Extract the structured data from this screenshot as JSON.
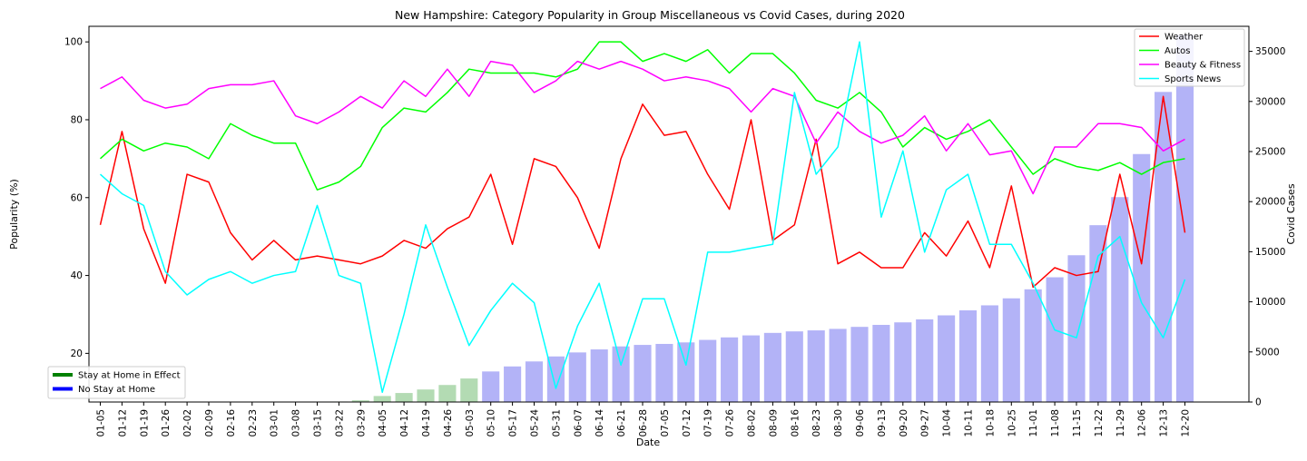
{
  "chart_data": {
    "type": "line",
    "title": "New Hampshire: Category Popularity in Group Miscellaneous vs Covid Cases, during 2020",
    "xlabel": "Date",
    "ylabel": "Popularity (%)",
    "y2label": "Covid Cases",
    "ylim": [
      7.5,
      104
    ],
    "y_ticks": [
      20,
      40,
      60,
      80,
      100
    ],
    "y2lim": [
      0,
      37500
    ],
    "y2_ticks": [
      0,
      5000,
      10000,
      15000,
      20000,
      25000,
      30000,
      35000
    ],
    "grid": false,
    "categories": [
      "01-05",
      "01-12",
      "01-19",
      "01-26",
      "02-02",
      "02-09",
      "02-16",
      "02-23",
      "03-01",
      "03-08",
      "03-15",
      "03-22",
      "03-29",
      "04-05",
      "04-12",
      "04-19",
      "04-26",
      "05-03",
      "05-10",
      "05-17",
      "05-24",
      "05-31",
      "06-07",
      "06-14",
      "06-21",
      "06-28",
      "07-05",
      "07-12",
      "07-19",
      "07-26",
      "08-02",
      "08-09",
      "08-16",
      "08-23",
      "08-30",
      "09-06",
      "09-13",
      "09-20",
      "09-27",
      "10-04",
      "10-11",
      "10-18",
      "10-25",
      "11-01",
      "11-08",
      "11-15",
      "11-22",
      "11-29",
      "12-06",
      "12-13",
      "12-20"
    ],
    "series": [
      {
        "name": "Weather",
        "color": "#ff0000",
        "values": [
          53,
          77,
          52,
          38,
          66,
          64,
          51,
          44,
          49,
          44,
          45,
          44,
          43,
          45,
          49,
          47,
          52,
          55,
          66,
          48,
          70,
          68,
          60,
          47,
          70,
          84,
          76,
          77,
          66,
          57,
          80,
          49,
          53,
          75,
          43,
          46,
          42,
          42,
          51,
          45,
          54,
          42,
          63,
          37,
          42,
          40,
          41,
          66,
          43,
          86,
          51
        ]
      },
      {
        "name": "Autos",
        "color": "#00ff00",
        "values": [
          70,
          75,
          72,
          74,
          73,
          70,
          79,
          76,
          74,
          74,
          62,
          64,
          68,
          78,
          83,
          82,
          87,
          93,
          92,
          92,
          92,
          91,
          93,
          100,
          100,
          95,
          97,
          95,
          98,
          92,
          97,
          97,
          92,
          85,
          83,
          87,
          82,
          73,
          78,
          75,
          77,
          80,
          73,
          66,
          70,
          68,
          67,
          69,
          66,
          69,
          70
        ]
      },
      {
        "name": "Beauty & Fitness",
        "color": "#ff00ff",
        "values": [
          88,
          91,
          85,
          83,
          84,
          88,
          89,
          89,
          90,
          81,
          79,
          82,
          86,
          83,
          90,
          86,
          93,
          86,
          95,
          94,
          87,
          90,
          95,
          93,
          95,
          93,
          90,
          91,
          90,
          88,
          82,
          88,
          86,
          74,
          82,
          77,
          74,
          76,
          81,
          72,
          79,
          71,
          72,
          61,
          73,
          73,
          79,
          79,
          78,
          72,
          75
        ]
      },
      {
        "name": "Sports News",
        "color": "#00ffff",
        "values": [
          66,
          61,
          58,
          41,
          35,
          39,
          41,
          38,
          40,
          41,
          58,
          40,
          38,
          10,
          30,
          53,
          37,
          22,
          31,
          38,
          33,
          11,
          27,
          38,
          17,
          34,
          34,
          17,
          46,
          46,
          47,
          48,
          87,
          66,
          73,
          100,
          55,
          72,
          46,
          62,
          66,
          48,
          48,
          38,
          26,
          24,
          45,
          50,
          33,
          24,
          39
        ]
      }
    ],
    "bars": {
      "name": "Covid Cases",
      "axis": "right",
      "values": [
        0,
        0,
        0,
        0,
        0,
        0,
        0,
        0,
        0,
        0,
        0,
        50,
        170,
        600,
        900,
        1250,
        1700,
        2350,
        3050,
        3550,
        4050,
        4550,
        4950,
        5250,
        5550,
        5700,
        5800,
        5950,
        6200,
        6450,
        6650,
        6900,
        7050,
        7150,
        7300,
        7500,
        7700,
        7950,
        8250,
        8650,
        9150,
        9650,
        10350,
        11250,
        12450,
        14650,
        17650,
        20450,
        24750,
        30950,
        36650
      ],
      "phases": [
        "stay",
        "stay",
        "stay",
        "stay",
        "stay",
        "stay",
        "stay",
        "stay",
        "stay",
        "stay",
        "stay",
        "stay",
        "stay",
        "stay",
        "stay",
        "stay",
        "stay",
        "stay",
        "none",
        "none",
        "none",
        "none",
        "none",
        "none",
        "none",
        "none",
        "none",
        "none",
        "none",
        "none",
        "none",
        "none",
        "none",
        "none",
        "none",
        "none",
        "none",
        "none",
        "none",
        "none",
        "none",
        "none",
        "none",
        "none",
        "none",
        "none",
        "none",
        "none",
        "none",
        "none",
        "none"
      ],
      "phase_colors": {
        "stay": "#b3dbb3",
        "none": "#b3b3f7"
      }
    },
    "legend_top_right": {
      "placement": "top-right",
      "entries": [
        "Weather",
        "Autos",
        "Beauty & Fitness",
        "Sports News"
      ]
    },
    "legend_bottom_left": {
      "placement": "bottom-left",
      "entries": [
        {
          "label": "Stay at Home in Effect",
          "color": "#008000"
        },
        {
          "label": "No Stay at Home",
          "color": "#0000ff"
        }
      ]
    }
  }
}
